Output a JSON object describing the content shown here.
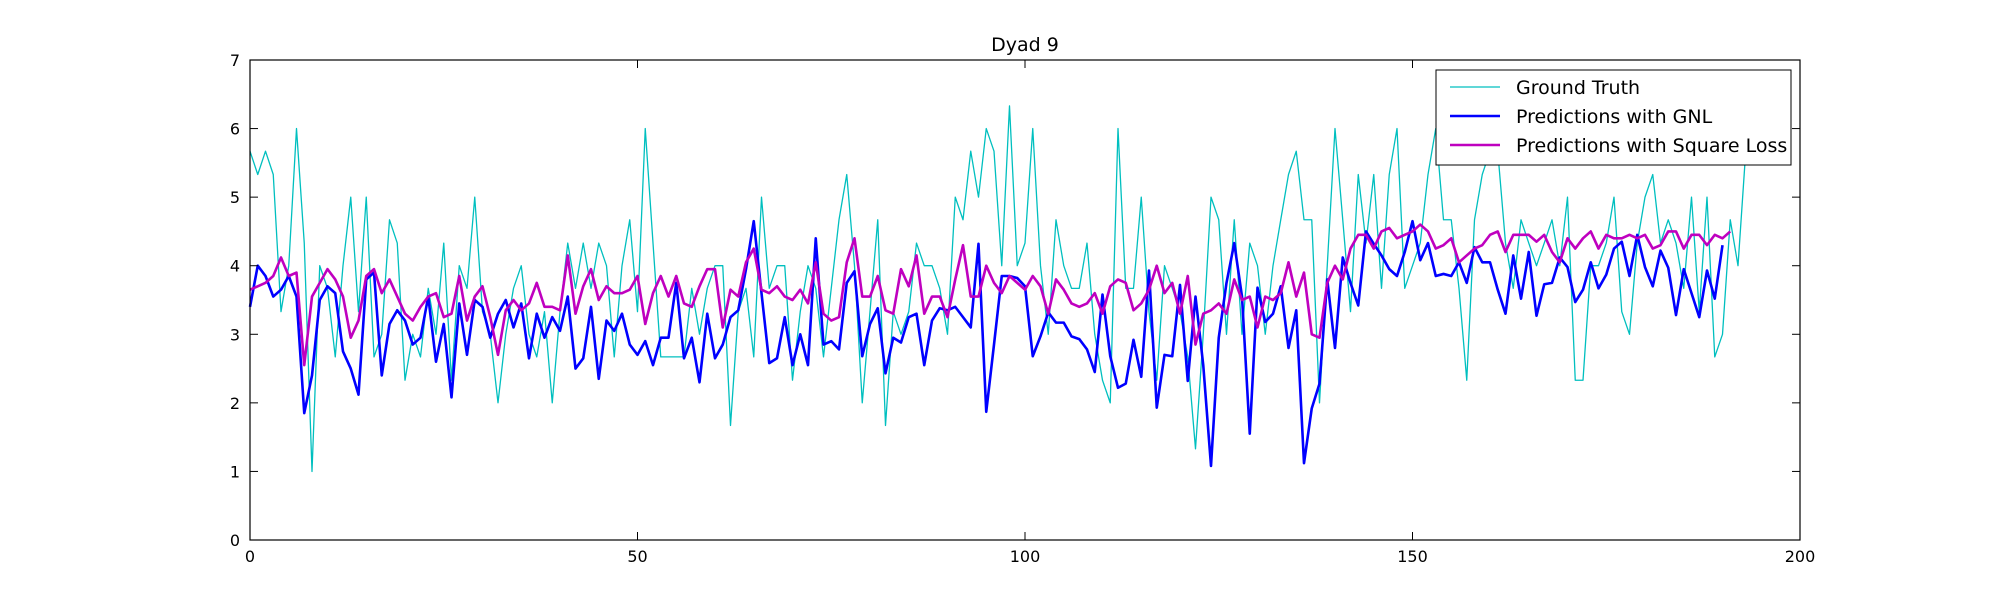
{
  "chart_data": {
    "type": "line",
    "title": "Dyad 9",
    "xlabel": "",
    "ylabel": "",
    "xlim": [
      0,
      200
    ],
    "ylim": [
      0,
      7
    ],
    "xticks": [
      0,
      50,
      100,
      150,
      200
    ],
    "yticks": [
      0,
      1,
      2,
      3,
      4,
      5,
      6,
      7
    ],
    "grid": false,
    "legend_position": "top-right",
    "series": [
      {
        "name": "Ground Truth",
        "color": "#00bfbf",
        "values": [
          5.67,
          5.33,
          5.67,
          5.33,
          3.33,
          4.0,
          6.0,
          4.33,
          1.0,
          4.0,
          3.67,
          2.67,
          4.0,
          5.0,
          3.33,
          5.0,
          2.67,
          3.0,
          4.67,
          4.33,
          2.33,
          3.0,
          2.67,
          3.67,
          3.0,
          4.33,
          2.33,
          4.0,
          3.67,
          5.0,
          3.33,
          3.0,
          2.0,
          3.0,
          3.67,
          4.0,
          3.0,
          2.67,
          3.33,
          2.0,
          3.33,
          4.33,
          3.67,
          4.33,
          3.67,
          4.33,
          4.0,
          2.67,
          4.0,
          4.67,
          3.33,
          6.0,
          4.33,
          2.67,
          2.67,
          2.67,
          2.67,
          3.67,
          3.0,
          3.67,
          4.0,
          4.0,
          1.67,
          3.33,
          3.67,
          2.67,
          5.0,
          3.67,
          4.0,
          4.0,
          2.33,
          3.33,
          4.0,
          3.67,
          2.67,
          3.67,
          4.67,
          5.33,
          4.0,
          2.0,
          3.33,
          4.67,
          1.67,
          3.33,
          3.0,
          3.33,
          4.33,
          4.0,
          4.0,
          3.67,
          3.0,
          5.0,
          4.67,
          5.67,
          5.0,
          6.0,
          5.67,
          4.0,
          6.33,
          4.0,
          4.33,
          6.0,
          4.0,
          3.0,
          4.67,
          4.0,
          3.67,
          3.67,
          4.33,
          3.0,
          2.33,
          2.0,
          6.0,
          3.67,
          3.67,
          5.0,
          3.33,
          2.33,
          4.0,
          3.67,
          3.33,
          2.67,
          1.33,
          3.0,
          5.0,
          4.67,
          3.0,
          4.67,
          3.0,
          4.33,
          4.0,
          3.0,
          4.0,
          4.67,
          5.33,
          5.67,
          4.67,
          4.67,
          2.0,
          4.0,
          6.0,
          4.67,
          3.33,
          5.33,
          4.33,
          5.33,
          3.67,
          5.33,
          6.0,
          3.67,
          4.0,
          4.33,
          5.33,
          6.0,
          4.67,
          4.67,
          3.67,
          2.33,
          4.67,
          5.33,
          5.67,
          5.67,
          4.33,
          3.67,
          4.67,
          4.33,
          4.0,
          4.33,
          4.67,
          4.0,
          5.0,
          2.33,
          2.33,
          4.0,
          4.0,
          4.33,
          5.0,
          3.33,
          3.0,
          4.33,
          5.0,
          5.33,
          4.33,
          4.67,
          4.33,
          3.67,
          5.0,
          3.33,
          5.0,
          2.67,
          3.0,
          4.67,
          4.0,
          5.67
        ]
      },
      {
        "name": "Predictions with GNL",
        "color": "#0000ff",
        "values": [
          3.4,
          4.0,
          3.85,
          3.55,
          3.65,
          3.85,
          3.55,
          1.85,
          2.4,
          3.5,
          3.7,
          3.6,
          2.75,
          2.5,
          2.12,
          3.8,
          3.9,
          2.4,
          3.15,
          3.35,
          3.2,
          2.85,
          2.95,
          3.55,
          2.6,
          3.15,
          2.08,
          3.45,
          2.7,
          3.5,
          3.4,
          2.95,
          3.3,
          3.5,
          3.1,
          3.45,
          2.65,
          3.3,
          2.95,
          3.25,
          3.05,
          3.55,
          2.5,
          2.65,
          3.4,
          2.35,
          3.2,
          3.05,
          3.3,
          2.85,
          2.7,
          2.9,
          2.55,
          2.95,
          2.95,
          3.75,
          2.65,
          2.95,
          2.3,
          3.3,
          2.65,
          2.85,
          3.25,
          3.35,
          3.95,
          4.65,
          3.6,
          2.58,
          2.65,
          3.25,
          2.55,
          3.0,
          2.55,
          4.4,
          2.85,
          2.9,
          2.78,
          3.75,
          3.92,
          2.68,
          3.15,
          3.38,
          2.43,
          2.95,
          2.88,
          3.25,
          3.3,
          2.55,
          3.2,
          3.38,
          3.35,
          3.4,
          3.25,
          3.1,
          4.32,
          1.87,
          2.85,
          3.85,
          3.85,
          3.82,
          3.7,
          2.68,
          2.97,
          3.32,
          3.17,
          3.17,
          2.97,
          2.93,
          2.78,
          2.45,
          3.58,
          2.68,
          2.22,
          2.28,
          2.92,
          2.38,
          3.93,
          1.93,
          2.7,
          2.68,
          3.72,
          2.32,
          3.55,
          2.55,
          1.08,
          2.95,
          3.75,
          4.33,
          3.55,
          1.55,
          3.68,
          3.18,
          3.3,
          3.7,
          2.8,
          3.35,
          1.12,
          1.92,
          2.28,
          3.8,
          2.8,
          4.12,
          3.75,
          3.42,
          4.5,
          4.32,
          4.15,
          3.95,
          3.85,
          4.2,
          4.65,
          4.08,
          4.33,
          3.85,
          3.88,
          3.85,
          4.05,
          3.75,
          4.27,
          4.05,
          4.05,
          3.65,
          3.3,
          4.15,
          3.52,
          4.2,
          3.27,
          3.73,
          3.75,
          4.12,
          3.98,
          3.47,
          3.65,
          4.05,
          3.67,
          3.87,
          4.25,
          4.35,
          3.85,
          4.45,
          3.98,
          3.7,
          4.22,
          3.97,
          3.28,
          3.95,
          3.6,
          3.25,
          3.93,
          3.52,
          4.3
        ]
      },
      {
        "name": "Predictions with Square Loss",
        "color": "#bf00bf",
        "values": [
          3.65,
          3.7,
          3.75,
          3.85,
          4.12,
          3.85,
          3.9,
          2.55,
          3.55,
          3.75,
          3.95,
          3.8,
          3.55,
          2.95,
          3.2,
          3.85,
          3.95,
          3.6,
          3.8,
          3.55,
          3.3,
          3.2,
          3.4,
          3.55,
          3.6,
          3.25,
          3.3,
          3.85,
          3.2,
          3.55,
          3.7,
          3.25,
          2.7,
          3.35,
          3.5,
          3.35,
          3.45,
          3.75,
          3.4,
          3.4,
          3.35,
          4.15,
          3.3,
          3.7,
          3.95,
          3.5,
          3.7,
          3.6,
          3.6,
          3.65,
          3.85,
          3.15,
          3.6,
          3.85,
          3.55,
          3.85,
          3.45,
          3.4,
          3.7,
          3.95,
          3.95,
          3.1,
          3.65,
          3.55,
          4.05,
          4.25,
          3.65,
          3.6,
          3.7,
          3.55,
          3.5,
          3.65,
          3.45,
          4.05,
          3.3,
          3.2,
          3.25,
          4.05,
          4.4,
          3.55,
          3.55,
          3.85,
          3.35,
          3.3,
          3.95,
          3.7,
          4.15,
          3.3,
          3.55,
          3.55,
          3.25,
          3.8,
          4.3,
          3.55,
          3.55,
          4.0,
          3.75,
          3.6,
          3.85,
          3.75,
          3.65,
          3.85,
          3.7,
          3.3,
          3.8,
          3.65,
          3.45,
          3.4,
          3.45,
          3.6,
          3.3,
          3.7,
          3.8,
          3.75,
          3.35,
          3.45,
          3.65,
          4.0,
          3.6,
          3.75,
          3.3,
          3.85,
          2.85,
          3.3,
          3.35,
          3.45,
          3.3,
          3.8,
          3.5,
          3.55,
          3.1,
          3.55,
          3.5,
          3.6,
          4.05,
          3.55,
          3.9,
          3.0,
          2.95,
          3.75,
          4.0,
          3.8,
          4.25,
          4.45,
          4.45,
          4.25,
          4.5,
          4.55,
          4.4,
          4.45,
          4.5,
          4.6,
          4.5,
          4.25,
          4.3,
          4.4,
          4.05,
          4.15,
          4.25,
          4.3,
          4.45,
          4.5,
          4.2,
          4.45,
          4.45,
          4.45,
          4.35,
          4.45,
          4.2,
          4.05,
          4.4,
          4.25,
          4.4,
          4.5,
          4.25,
          4.45,
          4.4,
          4.4,
          4.45,
          4.4,
          4.45,
          4.25,
          4.3,
          4.5,
          4.5,
          4.25,
          4.45,
          4.45,
          4.3,
          4.45,
          4.4,
          4.5
        ]
      }
    ]
  }
}
